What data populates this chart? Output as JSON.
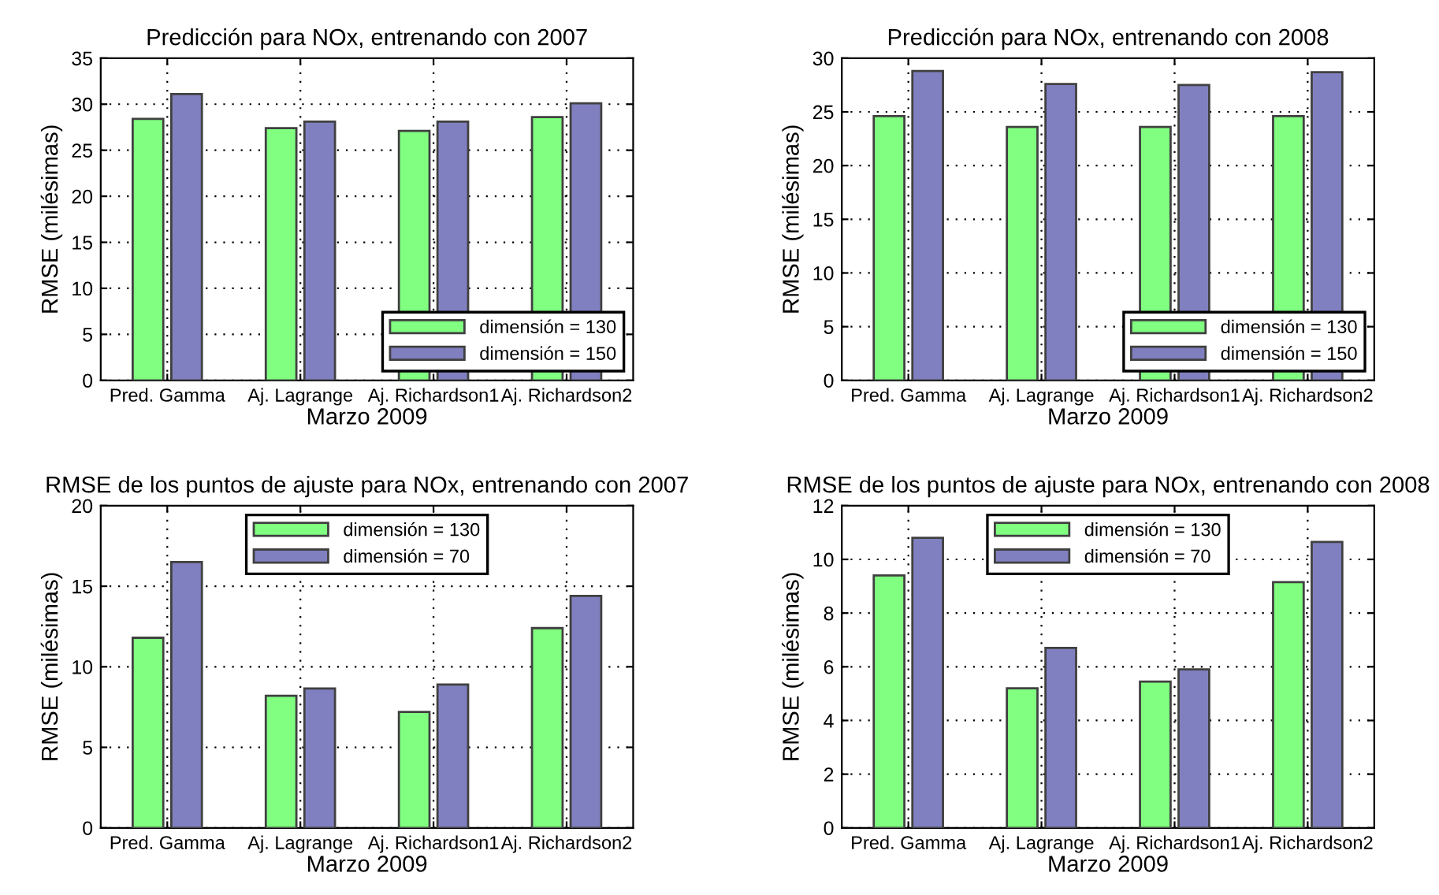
{
  "chart_data": [
    {
      "type": "bar",
      "title": "Predicción para NOx, entrenando con 2007",
      "xlabel": "Marzo 2009",
      "ylabel": "RMSE (milésimas)",
      "categories": [
        "Pred. Gamma",
        "Aj. Lagrange",
        "Aj. Richardson1",
        "Aj. Richardson2"
      ],
      "series": [
        {
          "name": "dimensión = 130",
          "color": "#80ff80",
          "values": [
            28.4,
            27.4,
            27.1,
            28.6
          ]
        },
        {
          "name": "dimensión = 150",
          "color": "#8080c0",
          "values": [
            31.1,
            28.1,
            28.1,
            30.1
          ]
        }
      ],
      "ylim": [
        0,
        35
      ],
      "yticks": [
        0,
        5,
        10,
        15,
        20,
        25,
        30,
        35
      ],
      "grid": true,
      "legend": "bottom right"
    },
    {
      "type": "bar",
      "title": "Predicción para NOx, entrenando con 2008",
      "xlabel": "Marzo 2009",
      "ylabel": "RMSE (milésimas)",
      "categories": [
        "Pred. Gamma",
        "Aj. Lagrange",
        "Aj. Richardson1",
        "Aj. Richardson2"
      ],
      "series": [
        {
          "name": "dimensión = 130",
          "color": "#80ff80",
          "values": [
            24.6,
            23.6,
            23.6,
            24.6
          ]
        },
        {
          "name": "dimensión = 150",
          "color": "#8080c0",
          "values": [
            28.8,
            27.6,
            27.5,
            28.7
          ]
        }
      ],
      "ylim": [
        0,
        30
      ],
      "yticks": [
        0,
        5,
        10,
        15,
        20,
        25,
        30
      ],
      "grid": true,
      "legend": "bottom right"
    },
    {
      "type": "bar",
      "title": "RMSE de los puntos de ajuste para NOx, entrenando con 2007",
      "xlabel": "Marzo 2009",
      "ylabel": "RMSE (milésimas)",
      "categories": [
        "Pred. Gamma",
        "Aj. Lagrange",
        "Aj. Richardson1",
        "Aj. Richardson2"
      ],
      "series": [
        {
          "name": "dimensión = 130",
          "color": "#80ff80",
          "values": [
            11.8,
            8.2,
            7.2,
            12.4
          ]
        },
        {
          "name": "dimensión = 70",
          "color": "#8080c0",
          "values": [
            16.5,
            8.65,
            8.9,
            14.4
          ]
        }
      ],
      "ylim": [
        0,
        20
      ],
      "yticks": [
        0,
        5,
        10,
        15,
        20
      ],
      "grid": true,
      "legend": "top center"
    },
    {
      "type": "bar",
      "title": "RMSE de los puntos de ajuste para NOx, entrenando con 2008",
      "xlabel": "Marzo 2009",
      "ylabel": "RMSE (milésimas)",
      "categories": [
        "Pred. Gamma",
        "Aj. Lagrange",
        "Aj. Richardson1",
        "Aj. Richardson2"
      ],
      "series": [
        {
          "name": "dimensión = 130",
          "color": "#80ff80",
          "values": [
            9.4,
            5.2,
            5.45,
            9.15
          ]
        },
        {
          "name": "dimensión = 70",
          "color": "#8080c0",
          "values": [
            10.8,
            6.7,
            5.9,
            10.65
          ]
        }
      ],
      "ylim": [
        0,
        12
      ],
      "yticks": [
        0,
        2,
        4,
        6,
        8,
        10,
        12
      ],
      "grid": true,
      "legend": "top center"
    }
  ]
}
